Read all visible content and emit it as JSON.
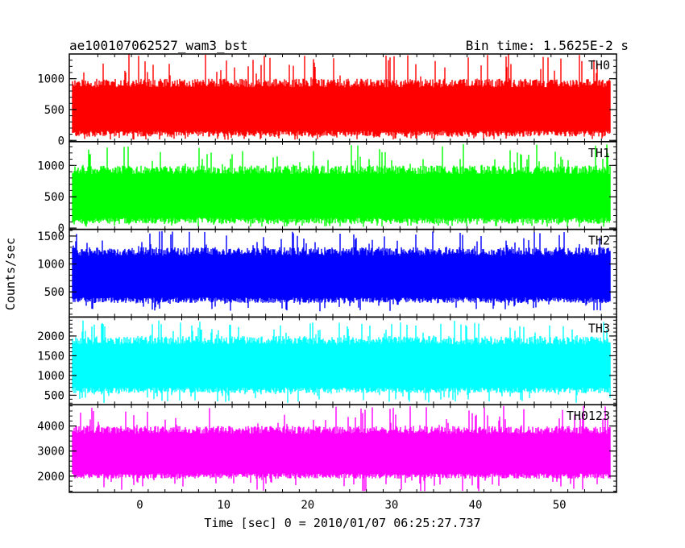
{
  "header": {
    "left_title": "ae100107062527_wam3_bst",
    "right_title": "Bin time: 1.5625E-2 s"
  },
  "chart_data": {
    "type": "line",
    "title": "ae100107062527_wam3_bst",
    "subtitle": "Bin time: 1.5625E-2 s",
    "xlabel": "Time [sec] 0 = 2010/01/07 06:25:27.737",
    "ylabel": "Counts/sec",
    "xlim": [
      -8.4,
      56.8
    ],
    "x_ticks": [
      0,
      10,
      20,
      30,
      40,
      50
    ],
    "x_range_data": [
      -8.0,
      56.0
    ],
    "grid": false,
    "panels": [
      {
        "name": "TH0",
        "color": "#ff0000",
        "ylim": [
          -20,
          1400
        ],
        "y_ticks": [
          0,
          500,
          1000
        ],
        "typical_range": [
          60,
          1000
        ],
        "extreme_range": [
          10,
          1400
        ]
      },
      {
        "name": "TH1",
        "color": "#00ff00",
        "ylim": [
          -20,
          1380
        ],
        "y_ticks": [
          0,
          500,
          1000
        ],
        "typical_range": [
          70,
          1000
        ],
        "extreme_range": [
          20,
          1350
        ]
      },
      {
        "name": "TH2",
        "color": "#0000ff",
        "ylim": [
          50,
          1620
        ],
        "y_ticks": [
          500,
          1000,
          1500
        ],
        "typical_range": [
          300,
          1300
        ],
        "extreme_range": [
          150,
          1600
        ]
      },
      {
        "name": "TH3",
        "color": "#00ffff",
        "ylim": [
          260,
          2480
        ],
        "y_ticks": [
          500,
          1000,
          1500,
          2000
        ],
        "typical_range": [
          550,
          2000
        ],
        "extreme_range": [
          300,
          2400
        ]
      },
      {
        "name": "TH0123",
        "color": "#ff00ff",
        "ylim": [
          1350,
          4850
        ],
        "y_ticks": [
          2000,
          3000,
          4000
        ],
        "typical_range": [
          1900,
          4000
        ],
        "extreme_range": [
          1400,
          4800
        ]
      }
    ]
  }
}
